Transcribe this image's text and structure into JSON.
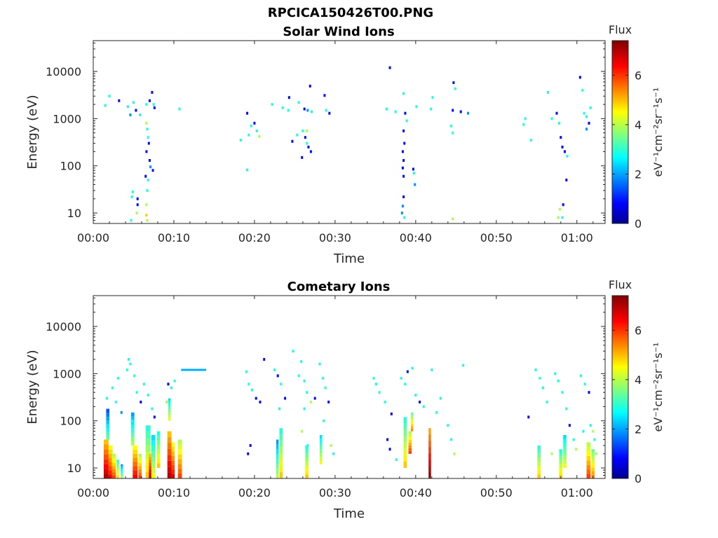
{
  "figure": {
    "filename_title": "RPCICA150426T00.PNG"
  },
  "chart_data": [
    {
      "type": "heatmap",
      "title": "Solar Wind Ions",
      "xlabel": "Time",
      "ylabel": "Energy (eV)",
      "x_ticks": [
        "00:00",
        "00:10",
        "00:20",
        "00:30",
        "00:40",
        "00:50",
        "01:00"
      ],
      "x_range_minutes": [
        0,
        63.5
      ],
      "y_ticks": [
        "10",
        "100",
        "1000",
        "10000"
      ],
      "y_scale": "log",
      "y_range_eV": [
        6,
        45000
      ],
      "colorbar": {
        "title": "Flux",
        "unit": "eV⁻¹cm⁻²sr⁻¹s⁻¹",
        "range": [
          0,
          7.4
        ],
        "ticks": [
          "0",
          "2",
          "4",
          "6"
        ],
        "colormap": "jet"
      },
      "cells": [
        [
          1.5,
          1900,
          3
        ],
        [
          2.0,
          3000,
          3
        ],
        [
          3.2,
          2400,
          1
        ],
        [
          4.3,
          1800,
          3
        ],
        [
          4.6,
          1200,
          2
        ],
        [
          5.0,
          2200,
          3
        ],
        [
          5.3,
          1500,
          1
        ],
        [
          5.8,
          1200,
          3
        ],
        [
          6.6,
          2000,
          3
        ],
        [
          7.0,
          2400,
          1
        ],
        [
          7.3,
          3600,
          1
        ],
        [
          7.5,
          2000,
          3
        ],
        [
          7.6,
          1700,
          1
        ],
        [
          6.6,
          800,
          4
        ],
        [
          6.7,
          600,
          3
        ],
        [
          6.8,
          400,
          3
        ],
        [
          6.9,
          300,
          1
        ],
        [
          6.6,
          200,
          1
        ],
        [
          7.0,
          130,
          1
        ],
        [
          7.1,
          95,
          2
        ],
        [
          7.4,
          80,
          1
        ],
        [
          6.5,
          60,
          1
        ],
        [
          6.8,
          50,
          3
        ],
        [
          6.7,
          30,
          3
        ],
        [
          6.6,
          15,
          4
        ],
        [
          6.6,
          9,
          5
        ],
        [
          6.7,
          7,
          4
        ],
        [
          4.9,
          28,
          3
        ],
        [
          4.8,
          22,
          3
        ],
        [
          5.5,
          20,
          1
        ],
        [
          5.5,
          15,
          1
        ],
        [
          5.4,
          10,
          4
        ],
        [
          4.7,
          7,
          3
        ],
        [
          10.7,
          1600,
          3
        ],
        [
          19.1,
          1300,
          1
        ],
        [
          19.1,
          82,
          3
        ],
        [
          18.3,
          350,
          3
        ],
        [
          19.3,
          450,
          3
        ],
        [
          19.6,
          700,
          3
        ],
        [
          20.0,
          800,
          1
        ],
        [
          20.3,
          550,
          3
        ],
        [
          20.6,
          420,
          4
        ],
        [
          22.2,
          2000,
          3
        ],
        [
          23.5,
          1700,
          3
        ],
        [
          24.3,
          2800,
          1
        ],
        [
          24.2,
          1500,
          3
        ],
        [
          25.5,
          2200,
          3
        ],
        [
          26.2,
          1600,
          1
        ],
        [
          26.6,
          1500,
          2
        ],
        [
          26.9,
          4900,
          1
        ],
        [
          27.1,
          1400,
          3
        ],
        [
          26.0,
          550,
          3
        ],
        [
          26.3,
          400,
          1
        ],
        [
          26.5,
          300,
          3
        ],
        [
          26.7,
          250,
          1
        ],
        [
          27.0,
          200,
          1
        ],
        [
          25.9,
          150,
          1
        ],
        [
          25.3,
          450,
          3
        ],
        [
          26.5,
          550,
          4
        ],
        [
          24.7,
          330,
          1
        ],
        [
          28.7,
          3100,
          1
        ],
        [
          28.9,
          1500,
          3
        ],
        [
          29.3,
          1300,
          1
        ],
        [
          36.8,
          12000,
          1
        ],
        [
          36.4,
          1600,
          3
        ],
        [
          37.5,
          1400,
          3
        ],
        [
          38.5,
          3400,
          3
        ],
        [
          38.7,
          1300,
          1
        ],
        [
          38.9,
          900,
          3
        ],
        [
          38.5,
          550,
          1
        ],
        [
          38.6,
          300,
          1
        ],
        [
          38.4,
          200,
          1
        ],
        [
          38.5,
          130,
          1
        ],
        [
          38.4,
          90,
          1
        ],
        [
          38.5,
          60,
          1
        ],
        [
          38.5,
          22,
          1
        ],
        [
          38.4,
          14,
          2
        ],
        [
          38.3,
          10,
          2
        ],
        [
          38.6,
          8,
          3
        ],
        [
          39.7,
          85,
          1
        ],
        [
          39.8,
          70,
          3
        ],
        [
          39.9,
          40,
          2
        ],
        [
          40.1,
          1800,
          3
        ],
        [
          41.9,
          1600,
          3
        ],
        [
          42.1,
          2800,
          3
        ],
        [
          44.7,
          5800,
          1
        ],
        [
          44.9,
          4300,
          3
        ],
        [
          44.6,
          1500,
          1
        ],
        [
          44.4,
          700,
          3
        ],
        [
          44.6,
          500,
          3
        ],
        [
          44.6,
          7.5,
          4
        ],
        [
          45.6,
          1400,
          1
        ],
        [
          46.5,
          1300,
          2
        ],
        [
          53.4,
          750,
          3
        ],
        [
          53.6,
          1000,
          3
        ],
        [
          54.3,
          350,
          3
        ],
        [
          56.4,
          3600,
          3
        ],
        [
          56.9,
          1000,
          3
        ],
        [
          57.5,
          1300,
          1
        ],
        [
          57.8,
          800,
          3
        ],
        [
          58.0,
          400,
          1
        ],
        [
          58.2,
          250,
          1
        ],
        [
          58.5,
          200,
          1
        ],
        [
          58.8,
          160,
          3
        ],
        [
          58.7,
          50,
          1
        ],
        [
          57.9,
          12,
          4
        ],
        [
          58.2,
          8,
          3
        ],
        [
          57.7,
          8,
          4
        ],
        [
          58.3,
          15,
          1
        ],
        [
          60.4,
          7500,
          1
        ],
        [
          60.7,
          4000,
          3
        ],
        [
          60.9,
          1300,
          3
        ],
        [
          61.2,
          1100,
          3
        ],
        [
          61.5,
          800,
          1
        ],
        [
          61.7,
          1700,
          3
        ],
        [
          61.2,
          600,
          2
        ]
      ]
    },
    {
      "type": "heatmap",
      "title": "Cometary Ions",
      "xlabel": "Time",
      "ylabel": "Energy (eV)",
      "x_ticks": [
        "00:00",
        "00:10",
        "00:20",
        "00:30",
        "00:40",
        "00:50",
        "01:00"
      ],
      "x_range_minutes": [
        0,
        63.5
      ],
      "y_ticks": [
        "10",
        "100",
        "1000",
        "10000"
      ],
      "y_scale": "log",
      "y_range_eV": [
        6,
        45000
      ],
      "colorbar": {
        "title": "Flux",
        "unit": "eV⁻¹cm⁻²sr⁻¹s⁻¹",
        "range": [
          0,
          7.4
        ],
        "ticks": [
          "0",
          "2",
          "4",
          "6"
        ],
        "colormap": "jet"
      },
      "hline": {
        "t0": 10.9,
        "t1": 14.0,
        "energy": 1200,
        "level": 2.2
      },
      "columns": [
        {
          "t": 1.3,
          "w": 0.6,
          "e0": 6,
          "e1": 40,
          "c": 7
        },
        {
          "t": 1.9,
          "w": 0.5,
          "e0": 6,
          "e1": 30,
          "c": 6.5
        },
        {
          "t": 2.3,
          "w": 0.5,
          "e0": 6,
          "e1": 20,
          "c": 6
        },
        {
          "t": 2.9,
          "w": 0.3,
          "e0": 6,
          "e1": 15,
          "c": 5
        },
        {
          "t": 1.6,
          "w": 0.4,
          "e0": 40,
          "e1": 180,
          "c": 3.5
        },
        {
          "t": 3.4,
          "w": 0.3,
          "e0": 6,
          "e1": 12,
          "c": 4
        },
        {
          "t": 4.9,
          "w": 0.6,
          "e0": 6,
          "e1": 30,
          "c": 6.5
        },
        {
          "t": 5.6,
          "w": 0.4,
          "e0": 6,
          "e1": 20,
          "c": 6
        },
        {
          "t": 4.7,
          "w": 0.4,
          "e0": 30,
          "e1": 150,
          "c": 4
        },
        {
          "t": 6.5,
          "w": 0.6,
          "e0": 6,
          "e1": 80,
          "c": 5
        },
        {
          "t": 7.2,
          "w": 0.5,
          "e0": 6,
          "e1": 50,
          "c": 4.5
        },
        {
          "t": 7.9,
          "w": 0.4,
          "e0": 10,
          "e1": 60,
          "c": 5
        },
        {
          "t": 6.9,
          "w": 0.3,
          "e0": 6,
          "e1": 20,
          "c": 7
        },
        {
          "t": 9.2,
          "w": 0.5,
          "e0": 6,
          "e1": 60,
          "c": 7
        },
        {
          "t": 9.7,
          "w": 0.4,
          "e0": 6,
          "e1": 35,
          "c": 6.5
        },
        {
          "t": 10.5,
          "w": 0.5,
          "e0": 6,
          "e1": 40,
          "c": 6
        },
        {
          "t": 9.3,
          "w": 0.3,
          "e0": 100,
          "e1": 300,
          "c": 4.5
        },
        {
          "t": 23.1,
          "w": 0.4,
          "e0": 6,
          "e1": 70,
          "c": 5
        },
        {
          "t": 22.7,
          "w": 0.3,
          "e0": 6,
          "e1": 40,
          "c": 4
        },
        {
          "t": 26.3,
          "w": 0.4,
          "e0": 6,
          "e1": 30,
          "c": 5
        },
        {
          "t": 28.1,
          "w": 0.3,
          "e0": 12,
          "e1": 50,
          "c": 4.5
        },
        {
          "t": 38.5,
          "w": 0.4,
          "e0": 10,
          "e1": 120,
          "c": 5
        },
        {
          "t": 39.1,
          "w": 0.4,
          "e0": 20,
          "e1": 60,
          "c": 6
        },
        {
          "t": 39.4,
          "w": 0.3,
          "e0": 60,
          "e1": 150,
          "c": 5.5
        },
        {
          "t": 41.6,
          "w": 0.3,
          "e0": 6,
          "e1": 70,
          "c": 7.2
        },
        {
          "t": 55.1,
          "w": 0.4,
          "e0": 6,
          "e1": 30,
          "c": 5
        },
        {
          "t": 57.8,
          "w": 0.4,
          "e0": 6,
          "e1": 25,
          "c": 5
        },
        {
          "t": 58.3,
          "w": 0.4,
          "e0": 10,
          "e1": 50,
          "c": 4.5
        },
        {
          "t": 61.2,
          "w": 0.5,
          "e0": 6,
          "e1": 35,
          "c": 6
        },
        {
          "t": 61.8,
          "w": 0.4,
          "e0": 6,
          "e1": 25,
          "c": 5.5
        }
      ],
      "cells": [
        [
          1.7,
          300,
          3
        ],
        [
          2.4,
          500,
          3
        ],
        [
          3.1,
          800,
          3
        ],
        [
          2.8,
          250,
          3
        ],
        [
          3.5,
          150,
          2
        ],
        [
          4.2,
          1200,
          3
        ],
        [
          4.6,
          1600,
          3
        ],
        [
          4.4,
          2000,
          3
        ],
        [
          5.1,
          900,
          3
        ],
        [
          5.4,
          400,
          3
        ],
        [
          5.9,
          250,
          1
        ],
        [
          4.8,
          100,
          3
        ],
        [
          6.3,
          600,
          3
        ],
        [
          6.8,
          350,
          3
        ],
        [
          7.3,
          180,
          3
        ],
        [
          7.6,
          120,
          1
        ],
        [
          9.3,
          600,
          1
        ],
        [
          9.7,
          500,
          3
        ],
        [
          10.1,
          700,
          3
        ],
        [
          9.1,
          250,
          4
        ],
        [
          19.0,
          1100,
          3
        ],
        [
          19.3,
          600,
          3
        ],
        [
          19.7,
          450,
          3
        ],
        [
          20.2,
          300,
          1
        ],
        [
          20.7,
          250,
          1
        ],
        [
          19.5,
          30,
          1
        ],
        [
          19.2,
          20,
          1
        ],
        [
          21.2,
          2000,
          1
        ],
        [
          22.5,
          1200,
          3
        ],
        [
          22.9,
          900,
          1
        ],
        [
          23.3,
          600,
          3
        ],
        [
          23.8,
          300,
          1
        ],
        [
          23.1,
          180,
          3
        ],
        [
          24.8,
          3000,
          3
        ],
        [
          25.5,
          900,
          3
        ],
        [
          25.8,
          1800,
          3
        ],
        [
          26.2,
          700,
          3
        ],
        [
          26.5,
          400,
          3
        ],
        [
          27.0,
          250,
          4
        ],
        [
          26.2,
          180,
          3
        ],
        [
          27.5,
          300,
          1
        ],
        [
          26.6,
          30,
          3
        ],
        [
          25.9,
          60,
          4
        ],
        [
          28.1,
          1600,
          3
        ],
        [
          28.5,
          800,
          3
        ],
        [
          28.8,
          500,
          3
        ],
        [
          29.2,
          250,
          1
        ],
        [
          28.6,
          100,
          3
        ],
        [
          29.5,
          30,
          4
        ],
        [
          29.8,
          20,
          3
        ],
        [
          34.8,
          800,
          3
        ],
        [
          35.1,
          600,
          3
        ],
        [
          35.5,
          400,
          3
        ],
        [
          36.2,
          250,
          3
        ],
        [
          37.0,
          140,
          1
        ],
        [
          36.5,
          40,
          1
        ],
        [
          36.8,
          25,
          1
        ],
        [
          37.6,
          15,
          3
        ],
        [
          38.2,
          800,
          3
        ],
        [
          38.7,
          600,
          3
        ],
        [
          39.0,
          1100,
          1
        ],
        [
          39.6,
          1300,
          3
        ],
        [
          40.0,
          350,
          3
        ],
        [
          40.5,
          250,
          1
        ],
        [
          41.0,
          200,
          3
        ],
        [
          42.0,
          1200,
          3
        ],
        [
          42.6,
          150,
          3
        ],
        [
          43.1,
          300,
          3
        ],
        [
          44.0,
          80,
          3
        ],
        [
          44.4,
          40,
          3
        ],
        [
          44.8,
          20,
          4
        ],
        [
          45.9,
          1500,
          3
        ],
        [
          54.0,
          120,
          1
        ],
        [
          54.9,
          1200,
          3
        ],
        [
          55.4,
          800,
          3
        ],
        [
          55.8,
          500,
          3
        ],
        [
          56.3,
          250,
          3
        ],
        [
          57.3,
          1000,
          3
        ],
        [
          57.7,
          700,
          3
        ],
        [
          58.2,
          400,
          3
        ],
        [
          58.7,
          180,
          3
        ],
        [
          59.1,
          80,
          1
        ],
        [
          59.6,
          40,
          3
        ],
        [
          59.9,
          25,
          4
        ],
        [
          60.5,
          900,
          3
        ],
        [
          61.0,
          600,
          3
        ],
        [
          61.5,
          400,
          1
        ],
        [
          61.7,
          80,
          3
        ],
        [
          62.2,
          40,
          3
        ],
        [
          62.4,
          20,
          4
        ],
        [
          56.9,
          20,
          4
        ],
        [
          60.8,
          60,
          3
        ],
        [
          62.0,
          60,
          4
        ]
      ]
    }
  ]
}
